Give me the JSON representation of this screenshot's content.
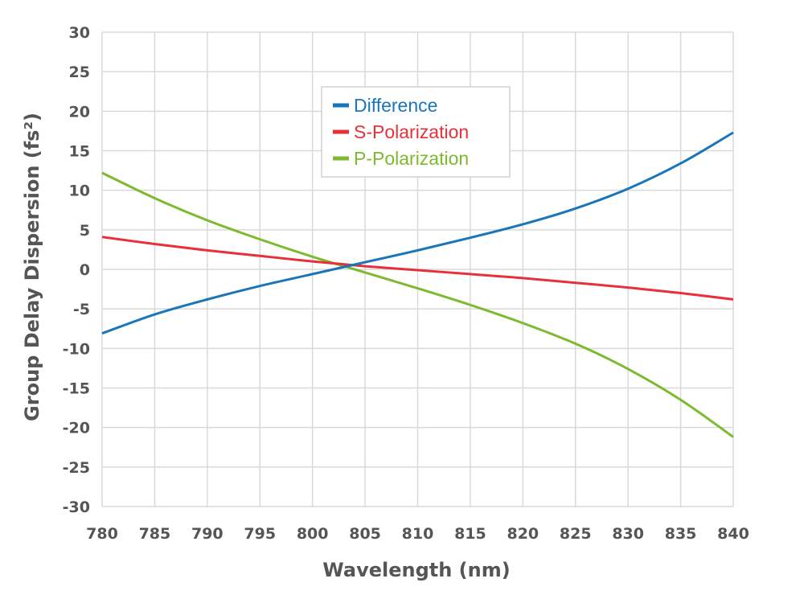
{
  "chart_data": {
    "type": "line",
    "title": "",
    "xlabel": "Wavelength (nm)",
    "ylabel": "Group Delay Dispersion  (fs²)",
    "xlim": [
      780,
      840
    ],
    "ylim": [
      -30,
      30
    ],
    "xticks": [
      780,
      785,
      790,
      795,
      800,
      805,
      810,
      815,
      820,
      825,
      830,
      835,
      840
    ],
    "yticks": [
      30,
      25,
      20,
      15,
      10,
      5,
      0,
      -5,
      -10,
      -15,
      -20,
      -25,
      -30
    ],
    "grid": true,
    "legend_position": "top-center",
    "series": [
      {
        "name": "Difference",
        "color": "#1a75b9",
        "x": [
          780,
          785,
          790,
          795,
          800,
          805,
          810,
          815,
          820,
          825,
          830,
          835,
          840
        ],
        "y": [
          -8.1,
          -5.7,
          -3.8,
          -2.1,
          -0.6,
          0.9,
          2.4,
          4.0,
          5.7,
          7.7,
          10.2,
          13.4,
          17.3
        ]
      },
      {
        "name": "S-Polarization",
        "color": "#e8303a",
        "x": [
          780,
          785,
          790,
          795,
          800,
          805,
          810,
          815,
          820,
          825,
          830,
          835,
          840
        ],
        "y": [
          4.1,
          3.2,
          2.4,
          1.7,
          1.0,
          0.4,
          -0.1,
          -0.6,
          -1.1,
          -1.7,
          -2.3,
          -3.0,
          -3.8
        ]
      },
      {
        "name": "P-Polarization",
        "color": "#7dba2f",
        "x": [
          780,
          785,
          790,
          795,
          800,
          805,
          810,
          815,
          820,
          825,
          830,
          835,
          840
        ],
        "y": [
          12.2,
          9.0,
          6.2,
          3.8,
          1.6,
          -0.4,
          -2.4,
          -4.5,
          -6.8,
          -9.4,
          -12.6,
          -16.5,
          -21.2
        ]
      }
    ]
  }
}
